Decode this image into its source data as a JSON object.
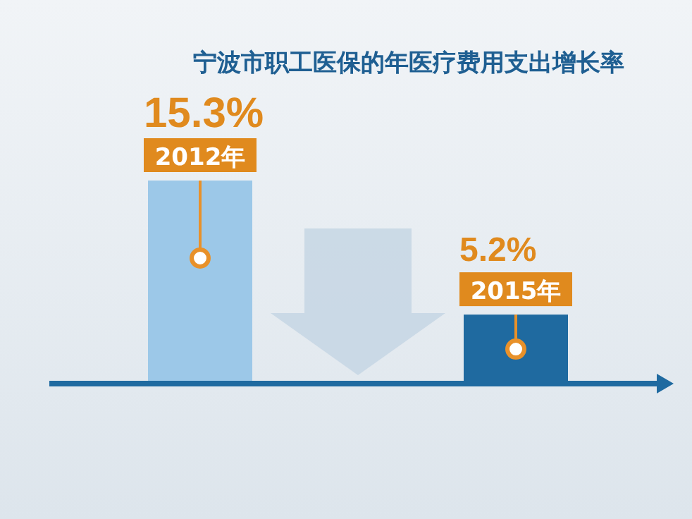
{
  "chart_data": {
    "type": "bar",
    "title": "宁波市职工医保的年医疗费用支出增长率",
    "categories": [
      "2012年",
      "2015年"
    ],
    "values": [
      15.3,
      5.2
    ],
    "colors": [
      "#9cc8e8",
      "#1f6aa0"
    ],
    "value_labels": [
      "15.3%",
      "5.2%"
    ]
  }
}
